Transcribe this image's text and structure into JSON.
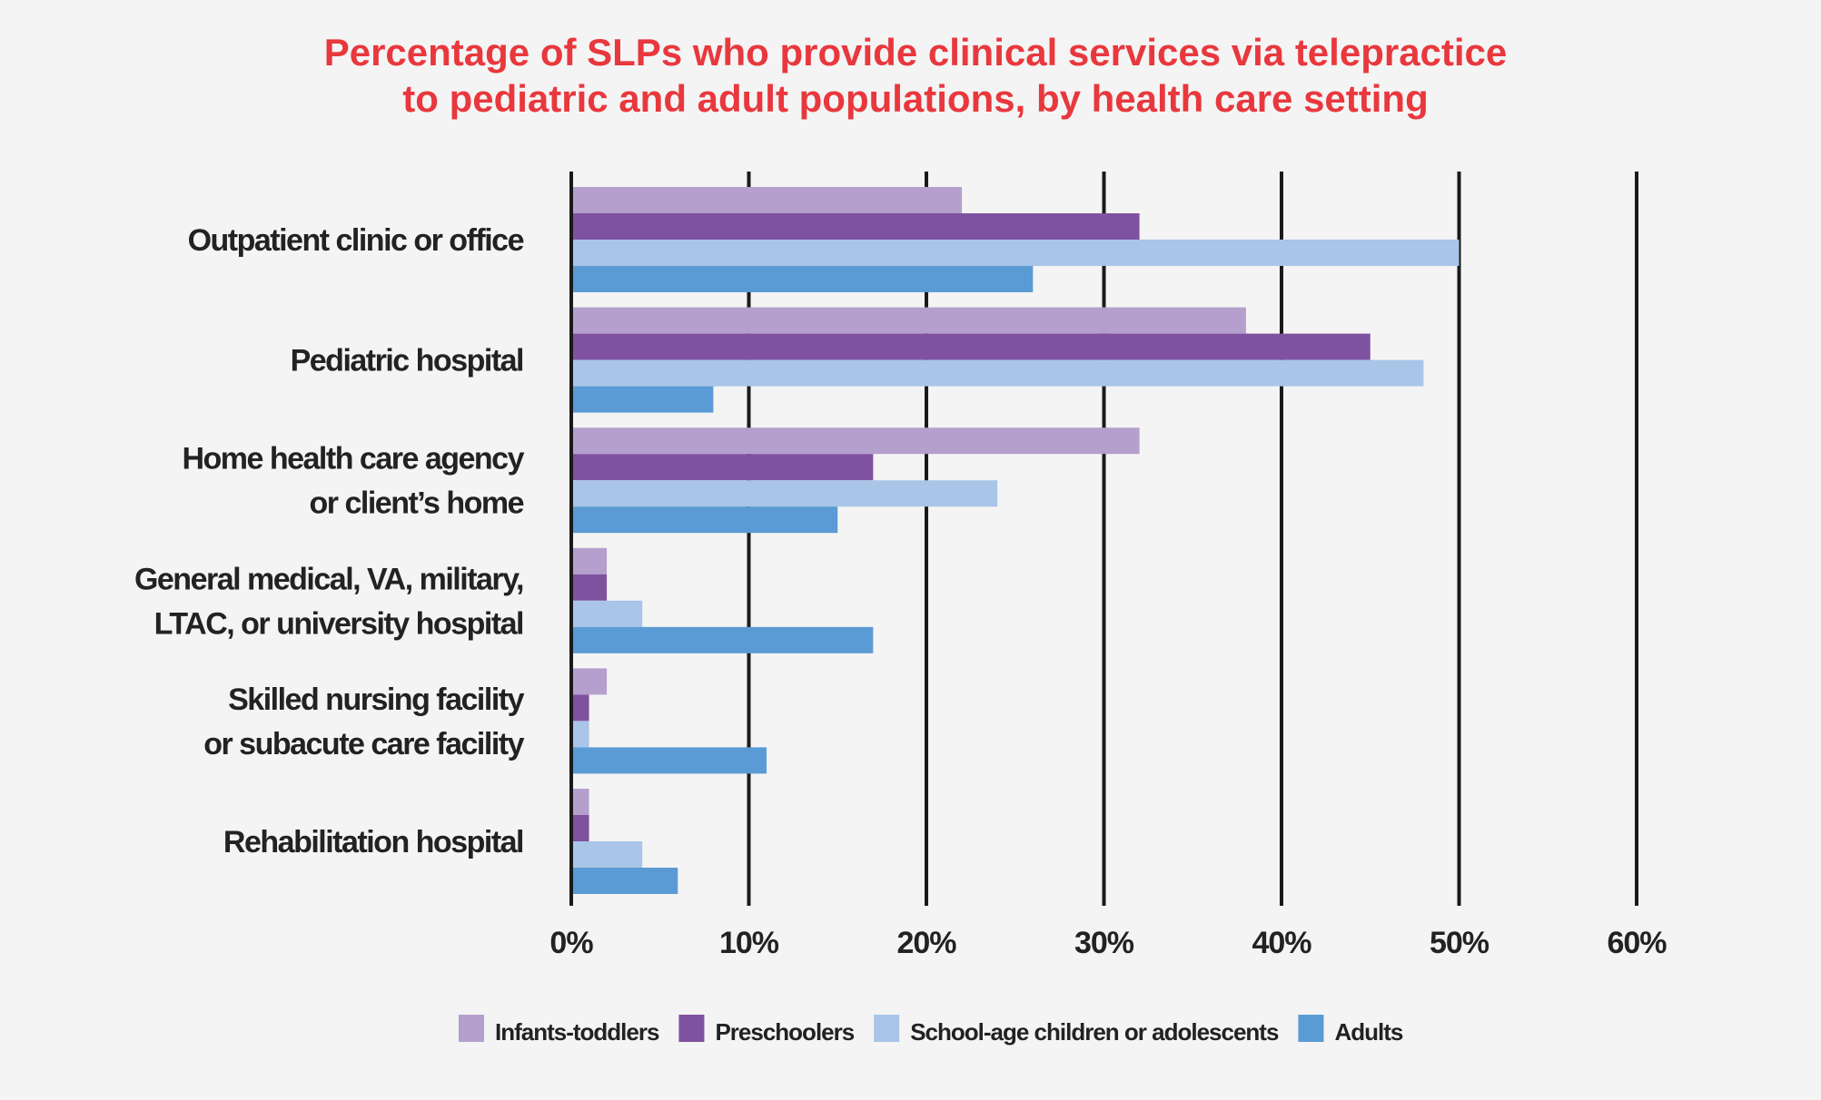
{
  "chart_data": {
    "type": "bar",
    "orientation": "horizontal",
    "title": [
      "Percentage of SLPs who provide clinical services via telepractice",
      "to pediatric and adult populations, by health care setting"
    ],
    "categories": [
      [
        "Outpatient clinic or office"
      ],
      [
        "Pediatric hospital"
      ],
      [
        "Home health care agency",
        "or client’s home"
      ],
      [
        "General medical, VA, military,",
        "LTAC, or university hospital"
      ],
      [
        "Skilled nursing facility",
        "or subacute care facility"
      ],
      [
        "Rehabilitation hospital"
      ]
    ],
    "series": [
      {
        "name": "Infants-toddlers",
        "color": "#b59fcc",
        "values": [
          22,
          38,
          32,
          2,
          2,
          1
        ]
      },
      {
        "name": "Preschoolers",
        "color": "#7f52a0",
        "values": [
          32,
          45,
          17,
          2,
          1,
          1
        ]
      },
      {
        "name": "School-age children or adolescents",
        "color": "#a9c5e8",
        "values": [
          50,
          48,
          24,
          4,
          1,
          4
        ]
      },
      {
        "name": "Adults",
        "color": "#5b9bd5",
        "values": [
          26,
          8,
          15,
          17,
          11,
          6
        ]
      }
    ],
    "xlim": [
      0,
      60
    ],
    "xticks": [
      0,
      10,
      20,
      30,
      40,
      50,
      60
    ],
    "tick_suffix": "%",
    "grid": true,
    "legend": "bottom",
    "title_color": "#e8383d"
  }
}
